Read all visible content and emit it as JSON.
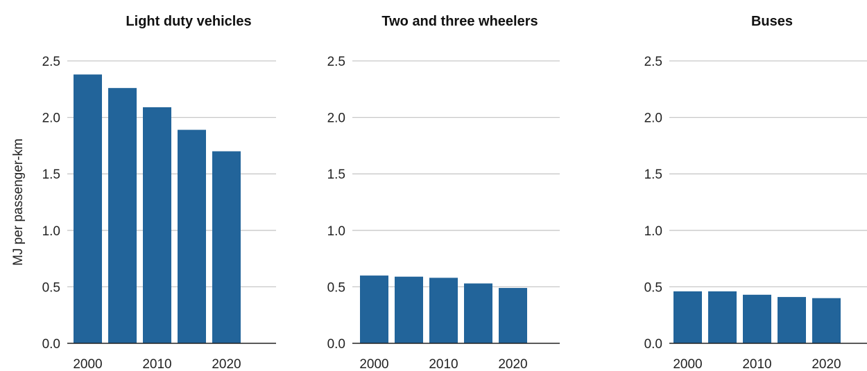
{
  "chart_data": [
    {
      "type": "bar",
      "title": "Light duty vehicles",
      "ylabel": "MJ per passenger-km",
      "x": [
        2000,
        2005,
        2010,
        2015,
        2020
      ],
      "values": [
        2.38,
        2.26,
        2.09,
        1.89,
        1.7
      ],
      "ylim": [
        0,
        2.5
      ],
      "yticks": [
        "0.0",
        "0.5",
        "1.0",
        "1.5",
        "2.0",
        "2.5"
      ],
      "xticks": [
        "2000",
        "2010",
        "2020"
      ],
      "grid": true
    },
    {
      "type": "bar",
      "title": "Two and three wheelers",
      "x": [
        2000,
        2005,
        2010,
        2015,
        2020
      ],
      "values": [
        0.6,
        0.59,
        0.58,
        0.53,
        0.49
      ],
      "ylim": [
        0,
        2.5
      ],
      "yticks": [
        "0.0",
        "0.5",
        "1.0",
        "1.5",
        "2.0",
        "2.5"
      ],
      "xticks": [
        "2000",
        "2010",
        "2020"
      ],
      "grid": true
    },
    {
      "type": "bar",
      "title": "Buses",
      "x": [
        2000,
        2005,
        2010,
        2015,
        2020
      ],
      "values": [
        0.46,
        0.46,
        0.43,
        0.41,
        0.4
      ],
      "ylim": [
        0,
        2.5
      ],
      "yticks": [
        "0.0",
        "0.5",
        "1.0",
        "1.5",
        "2.0",
        "2.5"
      ],
      "xticks": [
        "2000",
        "2010",
        "2020"
      ],
      "grid": true
    }
  ],
  "colors": {
    "bar": "#22649a",
    "grid": "#c8c8c8",
    "axis": "#222222"
  }
}
